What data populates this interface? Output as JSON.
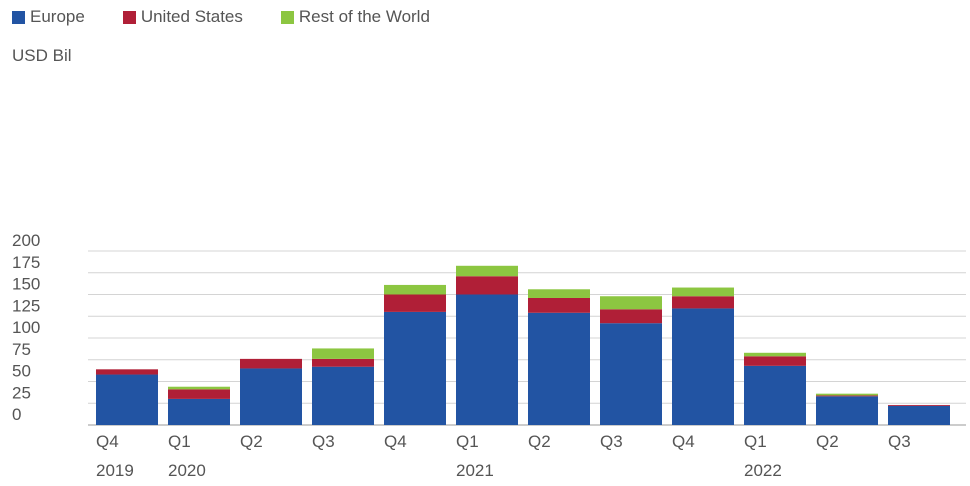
{
  "chart_data": {
    "type": "bar",
    "stacked": true,
    "ylabel": "USD Bil",
    "ylim": [
      0,
      200
    ],
    "yticks": [
      0,
      25,
      50,
      75,
      100,
      125,
      150,
      175,
      200
    ],
    "grid": true,
    "legend_position": "top-left",
    "categories": [
      [
        "Q4",
        "2019"
      ],
      [
        "Q1",
        "2020"
      ],
      [
        "Q2",
        ""
      ],
      [
        "Q3",
        ""
      ],
      [
        "Q4",
        ""
      ],
      [
        "Q1",
        "2021"
      ],
      [
        "Q2",
        ""
      ],
      [
        "Q3",
        ""
      ],
      [
        "Q4",
        ""
      ],
      [
        "Q1",
        "2022"
      ],
      [
        "Q2",
        ""
      ],
      [
        "Q3",
        ""
      ]
    ],
    "series": [
      {
        "name": "Europe",
        "color": "#2254a3",
        "values": [
          58,
          30,
          65,
          67,
          130,
          150,
          129,
          117,
          134,
          68,
          33,
          22
        ]
      },
      {
        "name": "United States",
        "color": "#b01f37",
        "values": [
          6,
          11,
          11,
          9,
          20,
          21,
          17,
          16,
          14,
          11,
          1,
          1
        ]
      },
      {
        "name": "Rest of the World",
        "color": "#8cc641",
        "values": [
          0,
          3,
          0,
          12,
          11,
          12,
          10,
          15,
          10,
          4,
          2,
          0
        ]
      }
    ]
  }
}
